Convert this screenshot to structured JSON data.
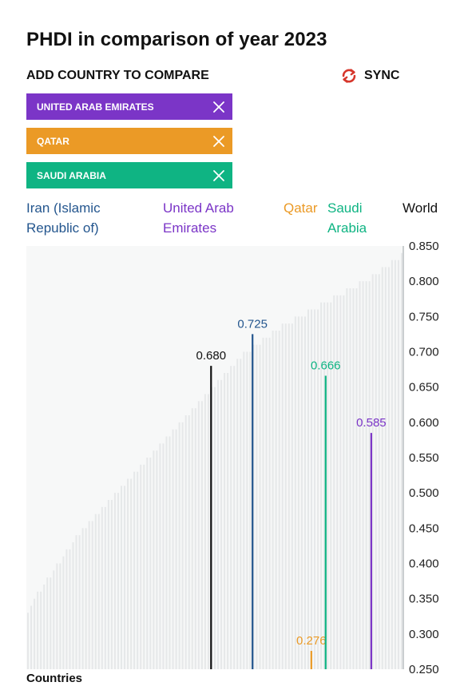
{
  "title": "PHDI in comparison of year 2023",
  "compare": {
    "add_label": "ADD COUNTRY TO COMPARE",
    "sync_label": "SYNC",
    "tags": [
      {
        "label": "UNITED ARAB EMIRATES",
        "color": "#7b35c7"
      },
      {
        "label": "QATAR",
        "color": "#eb9a26"
      },
      {
        "label": "SAUDI ARABIA",
        "color": "#0fb483"
      }
    ]
  },
  "colors": {
    "sync_icon": "#d6362b",
    "background_bars": "#e6e8e9",
    "plot_background": "#f7f8f8"
  },
  "chart_data": {
    "type": "bar",
    "xlabel": "Countries",
    "ylim": [
      0.25,
      0.85
    ],
    "yticks": [
      "0.850",
      "0.800",
      "0.750",
      "0.700",
      "0.650",
      "0.600",
      "0.550",
      "0.500",
      "0.450",
      "0.400",
      "0.350",
      "0.300",
      "0.250"
    ],
    "background_series_description_values": [
      0.33,
      0.34,
      0.35,
      0.36,
      0.36,
      0.37,
      0.38,
      0.38,
      0.39,
      0.4,
      0.4,
      0.41,
      0.42,
      0.42,
      0.43,
      0.44,
      0.44,
      0.45,
      0.45,
      0.46,
      0.46,
      0.47,
      0.47,
      0.48,
      0.48,
      0.49,
      0.49,
      0.5,
      0.5,
      0.51,
      0.51,
      0.52,
      0.52,
      0.53,
      0.53,
      0.54,
      0.54,
      0.55,
      0.55,
      0.56,
      0.56,
      0.57,
      0.57,
      0.58,
      0.58,
      0.59,
      0.59,
      0.6,
      0.6,
      0.61,
      0.61,
      0.62,
      0.62,
      0.63,
      0.63,
      0.64,
      0.64,
      0.65,
      0.65,
      0.66,
      0.66,
      0.67,
      0.67,
      0.68,
      0.68,
      0.69,
      0.69,
      0.7,
      0.7,
      0.7,
      0.71,
      0.71,
      0.71,
      0.72,
      0.72,
      0.72,
      0.73,
      0.73,
      0.73,
      0.74,
      0.74,
      0.74,
      0.74,
      0.75,
      0.75,
      0.75,
      0.75,
      0.76,
      0.76,
      0.76,
      0.76,
      0.77,
      0.77,
      0.77,
      0.77,
      0.78,
      0.78,
      0.78,
      0.78,
      0.79,
      0.79,
      0.79,
      0.79,
      0.8,
      0.8,
      0.8,
      0.8,
      0.81,
      0.81,
      0.81,
      0.82,
      0.82,
      0.82,
      0.83,
      0.83,
      0.83,
      0.84
    ],
    "highlighted": [
      {
        "name": "World",
        "value": 0.68,
        "label": "0.680",
        "color": "#111111",
        "x_fraction": 0.49
      },
      {
        "name": "Iran (Islamic Republic of)",
        "value": 0.725,
        "label": "0.725",
        "color": "#24568e",
        "x_fraction": 0.6
      },
      {
        "name": "Qatar",
        "value": 0.276,
        "label": "0.276",
        "color": "#eb9a26",
        "x_fraction": 0.756
      },
      {
        "name": "Saudi Arabia",
        "value": 0.666,
        "label": "0.666",
        "color": "#0fb483",
        "x_fraction": 0.794
      },
      {
        "name": "United Arab Emirates",
        "value": 0.585,
        "label": "0.585",
        "color": "#7b35c7",
        "x_fraction": 0.915
      }
    ],
    "legend": [
      {
        "label": "Iran (Islamic Republic of)",
        "color": "#24568e"
      },
      {
        "label": "United Arab Emirates",
        "color": "#7b35c7"
      },
      {
        "label": "Qatar",
        "color": "#eb9a26"
      },
      {
        "label": "Saudi Arabia",
        "color": "#0fb483"
      },
      {
        "label": "World",
        "color": "#111111"
      }
    ]
  }
}
